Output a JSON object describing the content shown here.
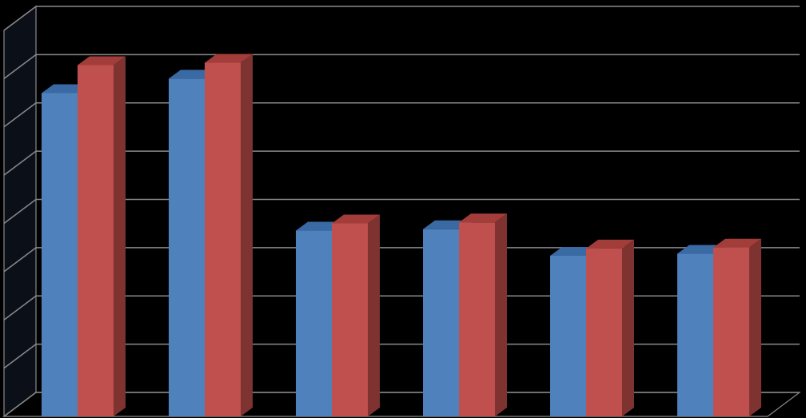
{
  "chart_data": {
    "type": "bar",
    "style": "3d-clustered-column",
    "title": "",
    "xlabel": "",
    "ylabel": "",
    "categories": [
      "",
      "",
      "",
      "",
      "",
      ""
    ],
    "series": [
      {
        "values": [
          6.7,
          7.0,
          3.85,
          3.88,
          3.33,
          3.37
        ]
      },
      {
        "values": [
          7.28,
          7.33,
          4.0,
          4.02,
          3.48,
          3.5
        ]
      }
    ],
    "ylim": [
      0,
      8
    ],
    "yticks": [
      0,
      1,
      2,
      3,
      4,
      5,
      6,
      7,
      8
    ],
    "grid": true,
    "legend": "none",
    "colors": {
      "series1_front": "#4f81bd",
      "series1_top": "#3a6aa4",
      "series1_side": "#2f5a8c",
      "series2_front": "#c0504d",
      "series2_top": "#a33d3a",
      "series2_side": "#7f3331",
      "gridline": "#8a8a8a",
      "back_wall": "#000000",
      "side_wall": "#0b1018",
      "background": "#000000"
    }
  }
}
